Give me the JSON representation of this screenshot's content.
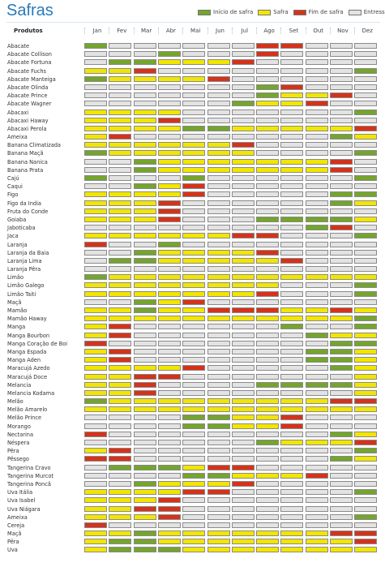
{
  "title": "Safras",
  "legend": [
    {
      "label": "Início de safra",
      "color": "#74a52c"
    },
    {
      "label": "Safra",
      "color": "#f2e600"
    },
    {
      "label": "Fim de safra",
      "color": "#d6321a"
    },
    {
      "label": "Entressafra",
      "color": "#e3e3e3"
    }
  ],
  "header": {
    "produtos": "Produtos"
  },
  "months": [
    "Jan",
    "Fev",
    "Mar",
    "Abr",
    "Mai",
    "Jun",
    "Jul",
    "Ago",
    "Set",
    "Out",
    "Nov",
    "Dez"
  ],
  "status_colors": {
    "I": "#74a52c",
    "S": "#f2e600",
    "F": "#d6321a",
    "E": "#e3e3e3"
  },
  "products": [
    {
      "name": "Abacate",
      "m": "IEEEEEEFFEEE"
    },
    {
      "name": "Abacate Collison",
      "m": "EEEIEEEFEEEE"
    },
    {
      "name": "Abacate Fortuna",
      "m": "EIISSSFEEEEE"
    },
    {
      "name": "Abacate Fuchs",
      "m": "SSFEEEEEEEEI"
    },
    {
      "name": "Abacate Manteiga",
      "m": "ISSSSFEEEEEE"
    },
    {
      "name": "Abacate Olinda",
      "m": "EEEEEEEIFEEE"
    },
    {
      "name": "Abacate Prince",
      "m": "EEEEEEEISSFE"
    },
    {
      "name": "Abacate Wagner",
      "m": "EEEEEEISSFEE"
    },
    {
      "name": "Abacaxi",
      "m": "SSSSEEEEEEEI"
    },
    {
      "name": "Abacaxi Haway",
      "m": "SSSFEEEEEEEE"
    },
    {
      "name": "Abacaxi Perola",
      "m": "SSSSIISSSSSF"
    },
    {
      "name": "Ameixa",
      "m": "SFEEEEEEEEIS"
    },
    {
      "name": "Banana Climatizada",
      "m": "SSSSSSFEEEEE"
    },
    {
      "name": "Banana Maçã",
      "m": "ISSSSSSEEEEI"
    },
    {
      "name": "Banana Nanica",
      "m": "EEISSSSSSSFE"
    },
    {
      "name": "Banana Prata",
      "m": "EEISSSSSSSFE"
    },
    {
      "name": "Cajú",
      "m": "IEEEIEEEEEEI"
    },
    {
      "name": "Caqui",
      "m": "EEISFEEEEEEE"
    },
    {
      "name": "Figo",
      "m": "SSSSFEEEEEII"
    },
    {
      "name": "Figo da India",
      "m": "SSSFEEEEEEIS"
    },
    {
      "name": "Fruta do Conde",
      "m": "SSSFEEEEEEEE"
    },
    {
      "name": "Goiaba",
      "m": "SSSFEEEIIIIS"
    },
    {
      "name": "Jaboticaba",
      "m": "EEEEEEEEEIFE"
    },
    {
      "name": "Jaca",
      "m": "SSSSSSFFEEEI"
    },
    {
      "name": "Laranja",
      "m": "FEEIEEEEEEEE"
    },
    {
      "name": "Laranja da Baia",
      "m": "EEISSSSFEEEE"
    },
    {
      "name": "Laranja Lima",
      "m": "EIISSSSSFEEE"
    },
    {
      "name": "Laranja Pêra",
      "m": "EEEEEEEEEEEE"
    },
    {
      "name": "Limão",
      "m": "ISSSSSSSSSSS"
    },
    {
      "name": "Limão Galego",
      "m": "SSSSSSSSEEEI"
    },
    {
      "name": "Limão Taiti",
      "m": "SSSSSSSFEEEI"
    },
    {
      "name": "Maçã",
      "m": "EEISFEEEEEEE"
    },
    {
      "name": "Mamão",
      "m": "SSISSFFFSSFS"
    },
    {
      "name": "Mamão Haway",
      "m": "SSSSSSSSSSSI"
    },
    {
      "name": "Manga",
      "m": "SFEEEEEEIEEI"
    },
    {
      "name": "Manga Bourbon",
      "m": "SFEEEEEEEISS"
    },
    {
      "name": "Manga Coração de Boi",
      "m": "FEEEEEEEEEII"
    },
    {
      "name": "Manga Espada",
      "m": "SFEEEEEEEIIS"
    },
    {
      "name": "Manga Aden",
      "m": "SFEEEEEEEIIS"
    },
    {
      "name": "Maracujá Azedo",
      "m": "SSSSFEEEEEIS"
    },
    {
      "name": "Maracujá Doce",
      "m": "SSFFEEEEEEES"
    },
    {
      "name": "Melancia",
      "m": "SSFEEEEIIIIS"
    },
    {
      "name": "Melancia Kodama",
      "m": "SSFEEEEEEEES"
    },
    {
      "name": "Melão",
      "m": "ISSSSSSSSSFF"
    },
    {
      "name": "Melão Amarelo",
      "m": "SSSSSSSSSSSS"
    },
    {
      "name": "Melão Prince",
      "m": "EEEEIISSFEEE"
    },
    {
      "name": "Morango",
      "m": "EEEEIISSFEEE"
    },
    {
      "name": "Nectarina",
      "m": "FEEEEEEEEEIS"
    },
    {
      "name": "Néspera",
      "m": "EEEEEEEISSSF"
    },
    {
      "name": "Pêra",
      "m": "SFEEEEEEEEEI"
    },
    {
      "name": "Pêssego",
      "m": "FFEEEEEEEEIS"
    },
    {
      "name": "Tangerina Cravo",
      "m": "EIIISFFEEEEE"
    },
    {
      "name": "Tangerina Murcot",
      "m": "EEEEIISSSFEE"
    },
    {
      "name": "Tangerina Poncã",
      "m": "EEISSSFEEEEE"
    },
    {
      "name": "Uva Itália",
      "m": "SSSSFFEEEEEI"
    },
    {
      "name": "Uva Isabel",
      "m": "SSSFEEEEEEEE"
    },
    {
      "name": "Uva Niágara",
      "m": "SSFFEEEEEEEE"
    },
    {
      "name": "Ameixa",
      "m": "SSSFEEEEEEEI"
    },
    {
      "name": "Cereja",
      "m": "FEEEEEEEEEEE"
    },
    {
      "name": "Maçã",
      "m": "SSISSSSSSSFF"
    },
    {
      "name": "Pêra",
      "m": "SIISSSSSSSSF"
    },
    {
      "name": "Uva",
      "m": "SIIISSSSSSSS"
    }
  ]
}
